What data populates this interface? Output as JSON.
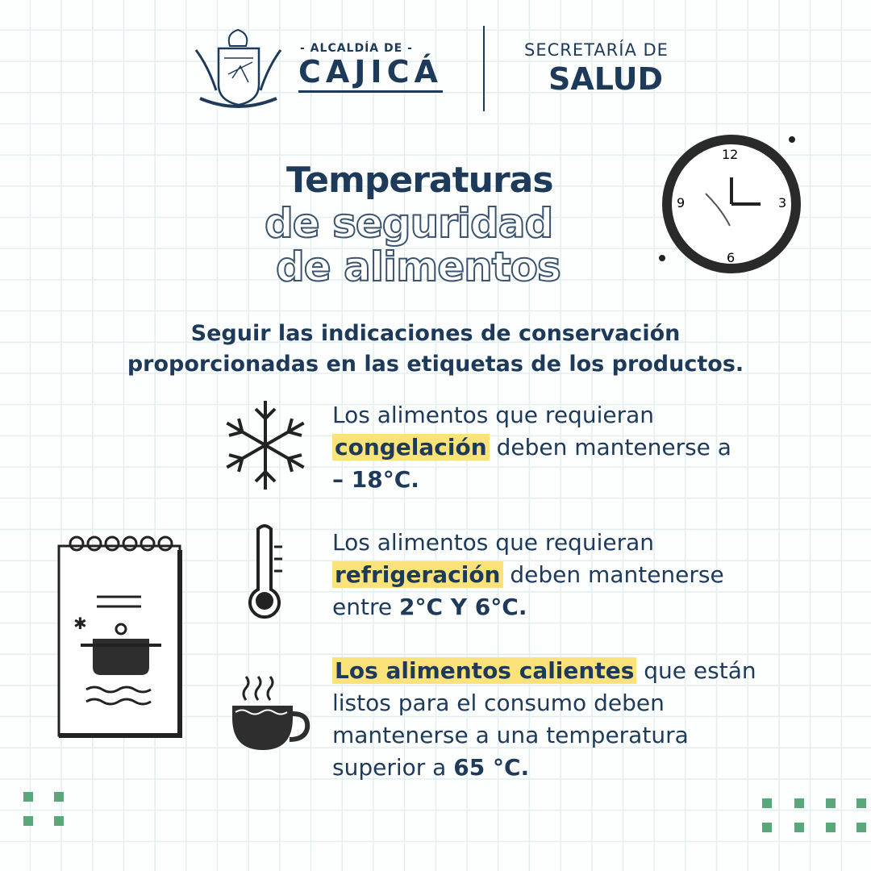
{
  "header": {
    "logo_subtitle": "- ALCALDÍA DE -",
    "logo_title": "CAJICÁ",
    "secretaria_line1": "SECRETARÍA DE",
    "secretaria_line2": "SALUD"
  },
  "title": {
    "line1": "Temperaturas",
    "line2": "de seguridad",
    "line3": "de alimentos"
  },
  "lead": {
    "line1": "Seguir las indicaciones de conservación",
    "line2": "proporcionadas en las etiquetas de los productos."
  },
  "items": [
    {
      "icon": "snowflake-icon",
      "pre": "Los alimentos que requieran",
      "highlight": "congelación",
      "post": " deben mantenerse a",
      "value": "– 18°C."
    },
    {
      "icon": "thermometer-icon",
      "pre": "Los alimentos que requieran",
      "highlight": "refrigeración",
      "post": " deben mantenerse",
      "mid": "entre ",
      "value": "2°C Y 6°C."
    },
    {
      "icon": "hot-cup-icon",
      "highlight": "Los alimentos calientes",
      "post": " que están",
      "line2": "listos para el consumo deben",
      "line3": "mantenerse a una temperatura",
      "line4": "superior a ",
      "value": "65 °C."
    }
  ],
  "colors": {
    "navy": "#1d3a5a",
    "highlight": "#fbe27a",
    "accent": "#5aa77a"
  }
}
